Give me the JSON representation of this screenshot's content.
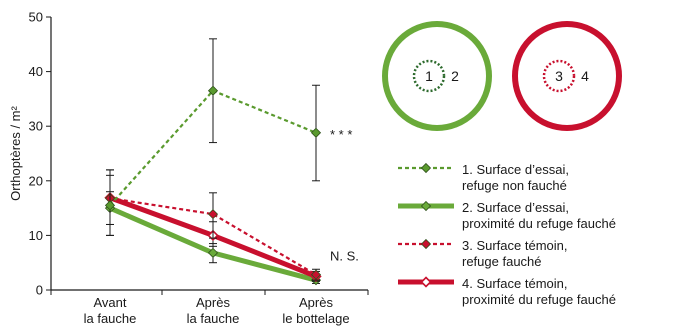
{
  "chart_data": {
    "type": "line",
    "categories": [
      [
        "Avant",
        "la fauche"
      ],
      [
        "Après",
        "la fauche"
      ],
      [
        "Après",
        "le bottelage"
      ]
    ],
    "ylabel": "Orthoptères / m²",
    "ylim": [
      0,
      50
    ],
    "yticks": [
      0,
      10,
      20,
      30,
      40,
      50
    ],
    "grid": false,
    "series": [
      {
        "name": "1. Surface d’essai,",
        "name2": "refuge non fauché",
        "values": [
          15.5,
          36.5,
          28.8
        ],
        "err_low": [
          10,
          27,
          20
        ],
        "err_high": [
          21,
          46,
          37.5
        ],
        "color": "#5a9a2e",
        "style": "dotted",
        "marker": "diamond-filled"
      },
      {
        "name": "2. Surface d’essai,",
        "name2": "proximité du refuge fauché",
        "values": [
          15,
          6.8,
          1.8
        ],
        "err_low": [
          12,
          5,
          1.2
        ],
        "err_high": [
          18,
          8.5,
          2.6
        ],
        "color": "#6aaa3a",
        "style": "solid-thick",
        "marker": "diamond-filled"
      },
      {
        "name": "3. Surface témoin,",
        "name2": "refuge fauché",
        "values": [
          16.8,
          13.9,
          2.8
        ],
        "err_low": [
          12,
          9.5,
          1.8
        ],
        "err_high": [
          22,
          17.8,
          3.8
        ],
        "color": "#c8102e",
        "style": "dotted",
        "marker": "diamond-filled"
      },
      {
        "name": "4. Surface témoin,",
        "name2": "proximité du refuge fauché",
        "values": [
          16.9,
          10,
          2.5
        ],
        "err_low": [
          10,
          8,
          1.6
        ],
        "err_high": [
          22,
          12.5,
          3.4
        ],
        "color": "#c8102e",
        "style": "solid-thick",
        "marker": "diamond-open"
      }
    ],
    "annotations": [
      {
        "text": "* * *",
        "series": 0
      },
      {
        "text": "N. S.",
        "series": 2
      }
    ],
    "circles": [
      {
        "outer_color": "#6aaa3a",
        "inner_color": "#2e6b2e",
        "inner_label": "1",
        "outer_label": "2"
      },
      {
        "outer_color": "#c8102e",
        "inner_color": "#c8102e",
        "inner_label": "3",
        "outer_label": "4"
      }
    ]
  }
}
